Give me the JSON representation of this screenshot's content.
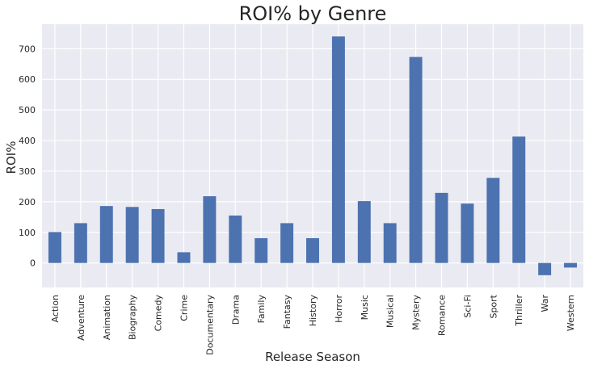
{
  "chart_data": {
    "type": "bar",
    "title": "ROI% by Genre",
    "xlabel": "Release Season",
    "ylabel": "ROI%",
    "categories": [
      "Action",
      "Adventure",
      "Animation",
      "Biography",
      "Comedy",
      "Crime",
      "Documentary",
      "Drama",
      "Family",
      "Fantasy",
      "History",
      "Horror",
      "Music",
      "Musical",
      "Mystery",
      "Romance",
      "Sci-Fi",
      "Sport",
      "Thriller",
      "War",
      "Western"
    ],
    "values": [
      101,
      130,
      186,
      183,
      176,
      35,
      218,
      155,
      81,
      130,
      81,
      740,
      202,
      130,
      673,
      229,
      194,
      278,
      413,
      -40,
      -15
    ],
    "yticks": [
      0,
      100,
      200,
      300,
      400,
      500,
      600,
      700
    ],
    "ylim": [
      -80,
      780
    ],
    "grid": true,
    "bar_color": "#4c72b0",
    "plot_background": "#eaeaf2",
    "grid_color": "#ffffff"
  }
}
